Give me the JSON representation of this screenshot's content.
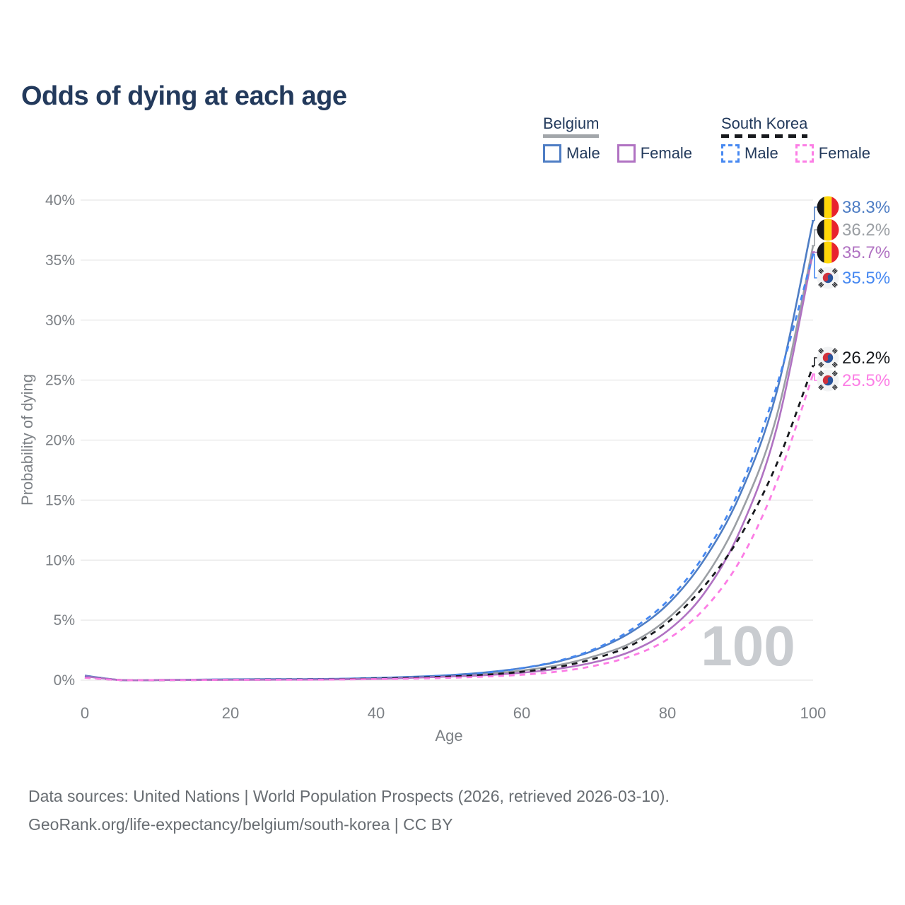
{
  "title": "Odds of dying at each age",
  "legend": {
    "groups": [
      {
        "name": "Belgium",
        "line_style": "solid",
        "underline_color": "#a2a6aa",
        "items": [
          {
            "label": "Male",
            "color": "#4e7dc4",
            "dash": false
          },
          {
            "label": "Female",
            "color": "#b072c2",
            "dash": false
          }
        ]
      },
      {
        "name": "South Korea",
        "line_style": "dashed",
        "underline_color": "#17191d",
        "items": [
          {
            "label": "Male",
            "color": "#4688f1",
            "dash": true
          },
          {
            "label": "Female",
            "color": "#fc7de5",
            "dash": true
          }
        ]
      }
    ]
  },
  "chart_data": {
    "type": "line",
    "title": "Odds of dying at each age",
    "xlabel": "Age",
    "ylabel": "Probability of dying",
    "xlim": [
      0,
      100
    ],
    "ylim": [
      0,
      40
    ],
    "x_ticks": [
      0,
      20,
      40,
      60,
      80,
      100
    ],
    "y_ticks": [
      0,
      5,
      10,
      15,
      20,
      25,
      30,
      35,
      40
    ],
    "y_tick_suffix": "%",
    "grid": "horizontal",
    "legend_position": "top-right",
    "age_label": "100",
    "x": [
      0,
      5,
      10,
      15,
      20,
      25,
      30,
      35,
      40,
      45,
      50,
      55,
      60,
      65,
      70,
      75,
      80,
      85,
      90,
      95,
      100
    ],
    "series": [
      {
        "id": "belgium_male",
        "name": "Belgium Male",
        "country": "Belgium",
        "sex": "Male",
        "color": "#4e7dc4",
        "dash": false,
        "flag": "belgium",
        "annotation": "38.3%",
        "end_value": 38.3,
        "values": [
          0.38,
          0.01,
          0.01,
          0.04,
          0.07,
          0.08,
          0.09,
          0.12,
          0.18,
          0.28,
          0.42,
          0.65,
          1.0,
          1.55,
          2.5,
          4.0,
          6.3,
          10.0,
          15.5,
          24.0,
          38.3
        ]
      },
      {
        "id": "belgium_total",
        "name": "Belgium Both sexes",
        "country": "Belgium",
        "sex": "Both",
        "color": "#9b9fa4",
        "dash": false,
        "flag": "belgium",
        "annotation": "36.2%",
        "end_value": 36.2,
        "values": [
          0.35,
          0.01,
          0.01,
          0.03,
          0.05,
          0.06,
          0.07,
          0.1,
          0.15,
          0.24,
          0.36,
          0.53,
          0.8,
          1.25,
          2.0,
          3.1,
          5.1,
          8.4,
          13.8,
          22.0,
          36.2
        ]
      },
      {
        "id": "belgium_female",
        "name": "Belgium Female",
        "country": "Belgium",
        "sex": "Female",
        "color": "#b072c2",
        "dash": false,
        "flag": "belgium",
        "annotation": "35.7%",
        "end_value": 35.7,
        "values": [
          0.32,
          0.01,
          0.01,
          0.02,
          0.03,
          0.04,
          0.05,
          0.07,
          0.11,
          0.2,
          0.3,
          0.42,
          0.62,
          0.95,
          1.5,
          2.4,
          4.1,
          7.2,
          12.5,
          21.0,
          35.7
        ]
      },
      {
        "id": "south_korea_male",
        "name": "South Korea Male",
        "country": "South Korea",
        "sex": "Male",
        "color": "#4688f1",
        "dash": true,
        "flag": "south-korea",
        "annotation": "35.5%",
        "end_value": 35.5,
        "values": [
          0.25,
          0.01,
          0.01,
          0.03,
          0.06,
          0.07,
          0.08,
          0.11,
          0.17,
          0.26,
          0.4,
          0.62,
          1.0,
          1.6,
          2.6,
          4.2,
          6.6,
          10.4,
          16.0,
          24.5,
          35.5
        ]
      },
      {
        "id": "south_korea_total",
        "name": "South Korea Both sexes",
        "country": "South Korea",
        "sex": "Both",
        "color": "#17191d",
        "dash": true,
        "flag": "south-korea",
        "annotation": "26.2%",
        "end_value": 26.2,
        "values": [
          0.22,
          0.01,
          0.01,
          0.02,
          0.04,
          0.05,
          0.06,
          0.08,
          0.13,
          0.2,
          0.3,
          0.45,
          0.7,
          1.1,
          1.8,
          2.9,
          4.8,
          7.8,
          12.0,
          18.0,
          26.2
        ]
      },
      {
        "id": "south_korea_female",
        "name": "South Korea Female",
        "country": "South Korea",
        "sex": "Female",
        "color": "#fc7de5",
        "dash": true,
        "flag": "south-korea",
        "annotation": "25.5%",
        "end_value": 25.5,
        "values": [
          0.2,
          0.01,
          0.01,
          0.02,
          0.03,
          0.035,
          0.04,
          0.06,
          0.09,
          0.13,
          0.2,
          0.3,
          0.45,
          0.72,
          1.2,
          2.0,
          3.4,
          5.9,
          10.0,
          16.5,
          25.5
        ]
      }
    ]
  },
  "footer": {
    "line1": "Data sources: United Nations | World Population Prospects (2026, retrieved 2026-03-10).",
    "line2": "GeoRank.org/life-expectancy/belgium/south-korea | CC BY"
  }
}
